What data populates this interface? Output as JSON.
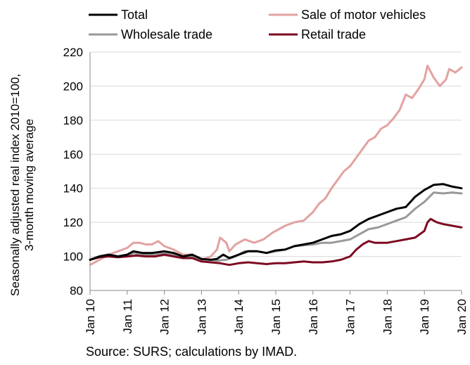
{
  "chart_data": {
    "type": "line",
    "title": "",
    "ylabel_lines": [
      "Seasonally adjusted real index 2010=100,",
      "3-month moving average"
    ],
    "ylim": [
      80,
      220
    ],
    "yticks": [
      80,
      100,
      120,
      140,
      160,
      180,
      200,
      220
    ],
    "xlim": [
      "2010-01",
      "2020-01"
    ],
    "x_tick_labels": [
      "Jan 10",
      "Jan 11",
      "Jan 12",
      "Jan 13",
      "Jan 14",
      "Jan 15",
      "Jan 16",
      "Jan 17",
      "Jan 18",
      "Jan 19",
      "Jan 20"
    ],
    "grid": "horizontal",
    "legend_position": "top",
    "series": [
      {
        "name": "Total",
        "color": "#000000",
        "points": [
          [
            "2010-01",
            98
          ],
          [
            "2010-04",
            100
          ],
          [
            "2010-07",
            101
          ],
          [
            "2010-10",
            100
          ],
          [
            "2011-01",
            101
          ],
          [
            "2011-03",
            103
          ],
          [
            "2011-06",
            102
          ],
          [
            "2011-09",
            102
          ],
          [
            "2012-01",
            103
          ],
          [
            "2012-04",
            102
          ],
          [
            "2012-07",
            100
          ],
          [
            "2012-10",
            101
          ],
          [
            "2013-01",
            98.5
          ],
          [
            "2013-04",
            98
          ],
          [
            "2013-06",
            98.5
          ],
          [
            "2013-08",
            101
          ],
          [
            "2013-10",
            99
          ],
          [
            "2014-01",
            101
          ],
          [
            "2014-04",
            103
          ],
          [
            "2014-07",
            103
          ],
          [
            "2014-10",
            102
          ],
          [
            "2015-01",
            103.5
          ],
          [
            "2015-04",
            104
          ],
          [
            "2015-07",
            106
          ],
          [
            "2015-10",
            107
          ],
          [
            "2016-01",
            108
          ],
          [
            "2016-04",
            110
          ],
          [
            "2016-07",
            112
          ],
          [
            "2016-10",
            113
          ],
          [
            "2017-01",
            115
          ],
          [
            "2017-04",
            119
          ],
          [
            "2017-07",
            122
          ],
          [
            "2017-10",
            124
          ],
          [
            "2018-01",
            126
          ],
          [
            "2018-04",
            128
          ],
          [
            "2018-07",
            129
          ],
          [
            "2018-10",
            135
          ],
          [
            "2019-01",
            139
          ],
          [
            "2019-04",
            142
          ],
          [
            "2019-07",
            142.5
          ],
          [
            "2019-10",
            141
          ],
          [
            "2020-01",
            140
          ]
        ]
      },
      {
        "name": "Sale of motor vehicles",
        "color": "#e2a2a0",
        "points": [
          [
            "2010-01",
            95
          ],
          [
            "2010-04",
            98
          ],
          [
            "2010-07",
            101
          ],
          [
            "2010-10",
            103
          ],
          [
            "2011-01",
            105
          ],
          [
            "2011-03",
            108
          ],
          [
            "2011-05",
            108
          ],
          [
            "2011-07",
            107
          ],
          [
            "2011-09",
            107
          ],
          [
            "2011-11",
            109
          ],
          [
            "2012-01",
            106
          ],
          [
            "2012-04",
            104
          ],
          [
            "2012-07",
            101
          ],
          [
            "2012-10",
            101
          ],
          [
            "2013-01",
            98
          ],
          [
            "2013-04",
            100
          ],
          [
            "2013-06",
            104
          ],
          [
            "2013-07",
            111
          ],
          [
            "2013-09",
            108
          ],
          [
            "2013-10",
            103
          ],
          [
            "2013-12",
            107
          ],
          [
            "2014-03",
            110
          ],
          [
            "2014-06",
            108
          ],
          [
            "2014-09",
            110
          ],
          [
            "2014-12",
            114
          ],
          [
            "2015-04",
            118
          ],
          [
            "2015-07",
            120
          ],
          [
            "2015-10",
            121
          ],
          [
            "2016-01",
            126
          ],
          [
            "2016-03",
            131
          ],
          [
            "2016-05",
            134
          ],
          [
            "2016-07",
            140
          ],
          [
            "2016-09",
            145
          ],
          [
            "2016-11",
            150
          ],
          [
            "2017-01",
            153
          ],
          [
            "2017-03",
            158
          ],
          [
            "2017-05",
            163
          ],
          [
            "2017-07",
            168
          ],
          [
            "2017-09",
            170
          ],
          [
            "2017-11",
            175
          ],
          [
            "2018-01",
            177
          ],
          [
            "2018-03",
            181
          ],
          [
            "2018-05",
            186
          ],
          [
            "2018-07",
            195
          ],
          [
            "2018-09",
            193
          ],
          [
            "2018-11",
            198
          ],
          [
            "2019-01",
            204
          ],
          [
            "2019-02",
            212
          ],
          [
            "2019-04",
            205
          ],
          [
            "2019-06",
            200
          ],
          [
            "2019-08",
            204
          ],
          [
            "2019-09",
            210
          ],
          [
            "2019-11",
            208
          ],
          [
            "2020-01",
            211
          ]
        ]
      },
      {
        "name": "Wholesale trade",
        "color": "#999999",
        "points": [
          [
            "2010-01",
            98
          ],
          [
            "2010-04",
            100
          ],
          [
            "2010-07",
            101
          ],
          [
            "2010-10",
            100
          ],
          [
            "2011-01",
            100
          ],
          [
            "2011-03",
            102
          ],
          [
            "2011-06",
            101
          ],
          [
            "2011-09",
            101
          ],
          [
            "2012-01",
            102
          ],
          [
            "2012-04",
            101
          ],
          [
            "2012-07",
            100
          ],
          [
            "2012-10",
            100
          ],
          [
            "2013-01",
            98.5
          ],
          [
            "2013-04",
            98
          ],
          [
            "2013-06",
            97.5
          ],
          [
            "2013-09",
            98
          ],
          [
            "2013-12",
            100
          ],
          [
            "2014-03",
            103
          ],
          [
            "2014-07",
            103
          ],
          [
            "2014-10",
            102
          ],
          [
            "2015-01",
            103
          ],
          [
            "2015-04",
            104
          ],
          [
            "2015-07",
            106
          ],
          [
            "2015-10",
            106.5
          ],
          [
            "2016-01",
            107
          ],
          [
            "2016-04",
            108
          ],
          [
            "2016-07",
            108
          ],
          [
            "2016-10",
            109
          ],
          [
            "2017-01",
            110
          ],
          [
            "2017-04",
            113
          ],
          [
            "2017-07",
            116
          ],
          [
            "2017-10",
            117
          ],
          [
            "2018-01",
            119
          ],
          [
            "2018-04",
            121
          ],
          [
            "2018-07",
            123
          ],
          [
            "2018-10",
            128
          ],
          [
            "2019-01",
            132
          ],
          [
            "2019-04",
            137.5
          ],
          [
            "2019-07",
            137
          ],
          [
            "2019-10",
            137.5
          ],
          [
            "2020-01",
            137
          ]
        ]
      },
      {
        "name": "Retail trade",
        "color": "#7b0a21",
        "points": [
          [
            "2010-01",
            98
          ],
          [
            "2010-04",
            99.5
          ],
          [
            "2010-07",
            100
          ],
          [
            "2010-10",
            99.5
          ],
          [
            "2011-01",
            100
          ],
          [
            "2011-04",
            100.5
          ],
          [
            "2011-07",
            100
          ],
          [
            "2011-10",
            100
          ],
          [
            "2012-01",
            101
          ],
          [
            "2012-04",
            100
          ],
          [
            "2012-07",
            99
          ],
          [
            "2012-10",
            99
          ],
          [
            "2013-01",
            97
          ],
          [
            "2013-04",
            96.5
          ],
          [
            "2013-07",
            96
          ],
          [
            "2013-10",
            95
          ],
          [
            "2014-01",
            96
          ],
          [
            "2014-04",
            96.5
          ],
          [
            "2014-07",
            96
          ],
          [
            "2014-10",
            95.5
          ],
          [
            "2015-01",
            96
          ],
          [
            "2015-04",
            96
          ],
          [
            "2015-07",
            96.5
          ],
          [
            "2015-10",
            97
          ],
          [
            "2016-01",
            96.5
          ],
          [
            "2016-04",
            96.5
          ],
          [
            "2016-07",
            97
          ],
          [
            "2016-10",
            98
          ],
          [
            "2017-01",
            100
          ],
          [
            "2017-03",
            104
          ],
          [
            "2017-05",
            107
          ],
          [
            "2017-07",
            109
          ],
          [
            "2017-09",
            108
          ],
          [
            "2017-11",
            108
          ],
          [
            "2018-01",
            108
          ],
          [
            "2018-04",
            109
          ],
          [
            "2018-07",
            110
          ],
          [
            "2018-10",
            111
          ],
          [
            "2019-01",
            115
          ],
          [
            "2019-02",
            120
          ],
          [
            "2019-03",
            122
          ],
          [
            "2019-05",
            120
          ],
          [
            "2019-07",
            119
          ],
          [
            "2019-10",
            118
          ],
          [
            "2020-01",
            117
          ]
        ]
      }
    ],
    "source": "Source: SURS; calculations by IMAD."
  }
}
